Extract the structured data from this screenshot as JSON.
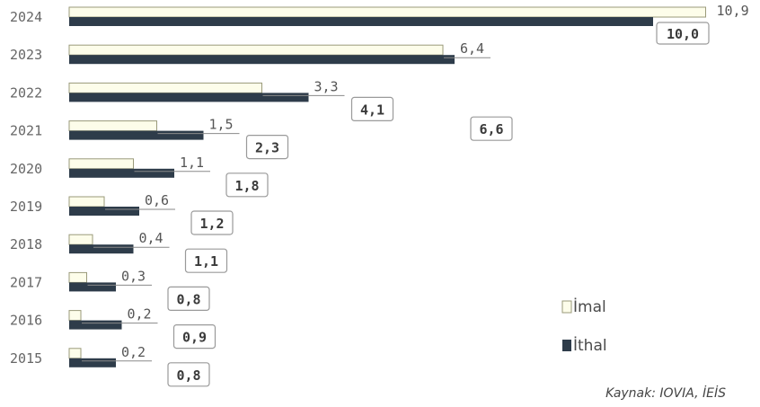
{
  "chart_data": {
    "type": "bar",
    "orientation": "horizontal",
    "categories": [
      "2024",
      "2023",
      "2022",
      "2021",
      "2020",
      "2019",
      "2018",
      "2017",
      "2016",
      "2015"
    ],
    "series": [
      {
        "name": "İmal",
        "values": [
          10.9,
          6.4,
          3.3,
          1.5,
          1.1,
          0.6,
          0.4,
          0.3,
          0.2,
          0.2
        ],
        "labels": [
          "10,9",
          "6,4",
          "3,3",
          "1,5",
          "1,1",
          "0,6",
          "0,4",
          "0,3",
          "0,2",
          "0,2"
        ]
      },
      {
        "name": "İthal",
        "values": [
          10.0,
          6.6,
          4.1,
          2.3,
          1.8,
          1.2,
          1.1,
          0.8,
          0.9,
          0.8
        ],
        "labels": [
          "10,0",
          "6,6",
          "4,1",
          "2,3",
          "1,8",
          "1,2",
          "1,1",
          "0,8",
          "0,9",
          "0,8"
        ]
      }
    ],
    "legend_position": "bottom-right",
    "source": "Kaynak: IOVIA, İEİS"
  },
  "colors": {
    "imal_fill": "#fdfdea",
    "imal_stroke": "#9a9a7a",
    "ithal_fill": "#2e3c4a"
  },
  "legend": {
    "imal": "İmal",
    "ithal": "İthal"
  }
}
